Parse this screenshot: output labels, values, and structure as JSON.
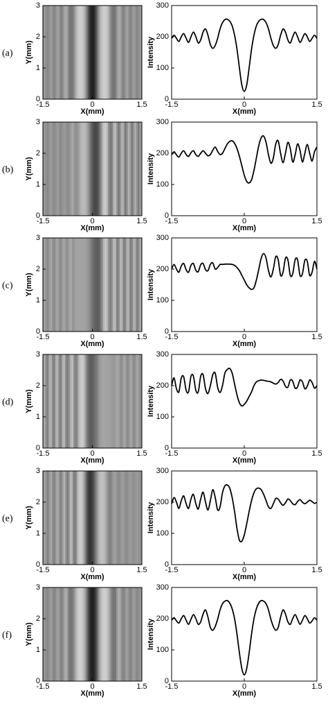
{
  "chart_data": [
    {
      "type": "line",
      "panel_label": "(a)",
      "x_label": "X(mm)",
      "y_label": "Intensity",
      "color": "#000000",
      "xlim": [
        -1.5,
        1.5
      ],
      "ylim": [
        0,
        300
      ],
      "xticks": [
        -1.5,
        0,
        1.5
      ],
      "yticks": [
        0,
        100,
        200,
        300
      ],
      "image": {
        "x_label": "X(mm)",
        "y_label": "Y(mm)",
        "xlim": [
          -1.5,
          1.5
        ],
        "ylim": [
          0,
          3
        ],
        "xticks": [
          -1.5,
          0,
          1.5
        ],
        "yticks": [
          0,
          1,
          2,
          3
        ]
      },
      "x": [
        -1.5,
        -1.45,
        -1.4,
        -1.35,
        -1.3,
        -1.25,
        -1.2,
        -1.15,
        -1.1,
        -1.05,
        -1.0,
        -0.95,
        -0.9,
        -0.85,
        -0.8,
        -0.75,
        -0.7,
        -0.65,
        -0.6,
        -0.55,
        -0.5,
        -0.45,
        -0.4,
        -0.35,
        -0.3,
        -0.25,
        -0.2,
        -0.15,
        -0.1,
        -0.05,
        0,
        0.05,
        0.1,
        0.15,
        0.2,
        0.25,
        0.3,
        0.35,
        0.4,
        0.45,
        0.5,
        0.55,
        0.6,
        0.65,
        0.7,
        0.75,
        0.8,
        0.85,
        0.9,
        0.95,
        1.0,
        1.05,
        1.1,
        1.15,
        1.2,
        1.25,
        1.3,
        1.35,
        1.4,
        1.45,
        1.5
      ],
      "values": [
        195,
        205,
        195,
        185,
        200,
        210,
        195,
        182,
        200,
        215,
        200,
        180,
        190,
        215,
        225,
        205,
        175,
        163,
        172,
        195,
        225,
        245,
        255,
        256,
        250,
        235,
        205,
        160,
        100,
        45,
        25,
        45,
        100,
        160,
        205,
        235,
        250,
        256,
        255,
        245,
        225,
        195,
        172,
        163,
        175,
        205,
        225,
        215,
        190,
        180,
        200,
        215,
        200,
        182,
        195,
        210,
        200,
        185,
        195,
        205,
        195
      ]
    },
    {
      "type": "line",
      "panel_label": "(b)",
      "x_label": "X(mm)",
      "y_label": "Intensity",
      "color": "#000000",
      "xlim": [
        -1.5,
        1.5
      ],
      "ylim": [
        0,
        300
      ],
      "xticks": [
        -1.5,
        0,
        1.5
      ],
      "yticks": [
        0,
        100,
        200,
        300
      ],
      "image": {
        "x_label": "X(mm)",
        "y_label": "Y(mm)",
        "xlim": [
          -1.5,
          1.5
        ],
        "ylim": [
          0,
          3
        ],
        "xticks": [
          -1.5,
          0,
          1.5
        ],
        "yticks": [
          0,
          1,
          2,
          3
        ]
      },
      "x": [
        -1.5,
        -1.45,
        -1.4,
        -1.35,
        -1.3,
        -1.25,
        -1.2,
        -1.15,
        -1.1,
        -1.05,
        -1.0,
        -0.95,
        -0.9,
        -0.85,
        -0.8,
        -0.75,
        -0.7,
        -0.65,
        -0.6,
        -0.55,
        -0.5,
        -0.45,
        -0.4,
        -0.35,
        -0.3,
        -0.25,
        -0.2,
        -0.15,
        -0.1,
        -0.05,
        0,
        0.05,
        0.1,
        0.15,
        0.2,
        0.25,
        0.3,
        0.35,
        0.4,
        0.45,
        0.5,
        0.55,
        0.6,
        0.65,
        0.7,
        0.75,
        0.8,
        0.85,
        0.9,
        0.95,
        1.0,
        1.05,
        1.1,
        1.15,
        1.2,
        1.25,
        1.3,
        1.35,
        1.4,
        1.45,
        1.5
      ],
      "values": [
        195,
        205,
        195,
        188,
        200,
        208,
        196,
        190,
        202,
        208,
        196,
        190,
        200,
        208,
        200,
        192,
        196,
        210,
        220,
        206,
        196,
        200,
        215,
        230,
        238,
        240,
        232,
        215,
        190,
        160,
        130,
        110,
        105,
        115,
        145,
        185,
        225,
        250,
        255,
        235,
        195,
        168,
        185,
        230,
        240,
        200,
        170,
        200,
        235,
        215,
        172,
        195,
        230,
        210,
        172,
        200,
        228,
        200,
        175,
        205,
        220
      ]
    },
    {
      "type": "line",
      "panel_label": "(c)",
      "x_label": "X(mm)",
      "y_label": "Intensity",
      "color": "#000000",
      "xlim": [
        -1.5,
        1.5
      ],
      "ylim": [
        0,
        300
      ],
      "xticks": [
        -1.5,
        0,
        1.5
      ],
      "yticks": [
        0,
        100,
        200,
        300
      ],
      "image": {
        "x_label": "X(mm)",
        "y_label": "Y(mm)",
        "xlim": [
          -1.5,
          1.5
        ],
        "ylim": [
          0,
          3
        ],
        "xticks": [
          -1.5,
          0,
          1.5
        ],
        "yticks": [
          0,
          1,
          2,
          3
        ]
      },
      "x": [
        -1.5,
        -1.45,
        -1.4,
        -1.35,
        -1.3,
        -1.25,
        -1.2,
        -1.15,
        -1.1,
        -1.05,
        -1.0,
        -0.95,
        -0.9,
        -0.85,
        -0.8,
        -0.75,
        -0.7,
        -0.65,
        -0.6,
        -0.55,
        -0.5,
        -0.45,
        -0.4,
        -0.35,
        -0.3,
        -0.25,
        -0.2,
        -0.15,
        -0.1,
        -0.05,
        0,
        0.05,
        0.1,
        0.15,
        0.2,
        0.25,
        0.3,
        0.35,
        0.4,
        0.45,
        0.5,
        0.55,
        0.6,
        0.65,
        0.7,
        0.75,
        0.8,
        0.85,
        0.9,
        0.95,
        1.0,
        1.05,
        1.1,
        1.15,
        1.2,
        1.25,
        1.3,
        1.35,
        1.4,
        1.45,
        1.5
      ],
      "values": [
        200,
        215,
        200,
        190,
        210,
        218,
        198,
        190,
        212,
        218,
        196,
        192,
        214,
        218,
        198,
        195,
        215,
        220,
        200,
        205,
        215,
        215,
        216,
        216,
        216,
        215,
        212,
        205,
        195,
        180,
        165,
        150,
        140,
        135,
        140,
        165,
        200,
        235,
        250,
        235,
        195,
        175,
        200,
        240,
        230,
        180,
        190,
        235,
        230,
        180,
        185,
        230,
        230,
        180,
        185,
        228,
        225,
        180,
        190,
        225,
        200
      ]
    },
    {
      "type": "line",
      "panel_label": "(d)",
      "x_label": "X(mm)",
      "y_label": "Intensity",
      "color": "#000000",
      "xlim": [
        -1.5,
        1.5
      ],
      "ylim": [
        0,
        300
      ],
      "xticks": [
        -1.5,
        0,
        1.5
      ],
      "yticks": [
        0,
        100,
        200,
        300
      ],
      "image": {
        "x_label": "X(mm)",
        "y_label": "Y(mm)",
        "xlim": [
          -1.5,
          1.5
        ],
        "ylim": [
          0,
          3
        ],
        "xticks": [
          -1.5,
          0,
          1.5
        ],
        "yticks": [
          0,
          1,
          2,
          3
        ]
      },
      "x": [
        -1.5,
        -1.45,
        -1.4,
        -1.35,
        -1.3,
        -1.25,
        -1.2,
        -1.15,
        -1.1,
        -1.05,
        -1.0,
        -0.95,
        -0.9,
        -0.85,
        -0.8,
        -0.75,
        -0.7,
        -0.65,
        -0.6,
        -0.55,
        -0.5,
        -0.45,
        -0.4,
        -0.35,
        -0.3,
        -0.25,
        -0.2,
        -0.15,
        -0.1,
        -0.05,
        0,
        0.05,
        0.1,
        0.15,
        0.2,
        0.25,
        0.3,
        0.35,
        0.4,
        0.45,
        0.5,
        0.55,
        0.6,
        0.65,
        0.7,
        0.75,
        0.8,
        0.85,
        0.9,
        0.95,
        1.0,
        1.05,
        1.1,
        1.15,
        1.2,
        1.25,
        1.3,
        1.35,
        1.4,
        1.45,
        1.5
      ],
      "values": [
        200,
        225,
        190,
        180,
        225,
        228,
        185,
        180,
        230,
        230,
        185,
        180,
        230,
        235,
        190,
        175,
        200,
        235,
        240,
        195,
        178,
        200,
        240,
        252,
        255,
        240,
        205,
        170,
        145,
        135,
        140,
        150,
        165,
        180,
        200,
        212,
        216,
        218,
        217,
        215,
        214,
        212,
        208,
        205,
        210,
        220,
        215,
        198,
        195,
        218,
        214,
        192,
        196,
        218,
        212,
        190,
        198,
        218,
        210,
        192,
        200
      ]
    },
    {
      "type": "line",
      "panel_label": "(e)",
      "x_label": "X(mm)",
      "y_label": "Intensity",
      "color": "#000000",
      "xlim": [
        -1.5,
        1.5
      ],
      "ylim": [
        0,
        300
      ],
      "xticks": [
        -1.5,
        0,
        1.5
      ],
      "yticks": [
        0,
        100,
        200,
        300
      ],
      "image": {
        "x_label": "X(mm)",
        "y_label": "Y(mm)",
        "xlim": [
          -1.5,
          1.5
        ],
        "ylim": [
          0,
          3
        ],
        "xticks": [
          -1.5,
          0,
          1.5
        ],
        "yticks": [
          0,
          1,
          2,
          3
        ]
      },
      "x": [
        -1.5,
        -1.45,
        -1.4,
        -1.35,
        -1.3,
        -1.25,
        -1.2,
        -1.15,
        -1.1,
        -1.05,
        -1.0,
        -0.95,
        -0.9,
        -0.85,
        -0.8,
        -0.75,
        -0.7,
        -0.65,
        -0.6,
        -0.55,
        -0.5,
        -0.45,
        -0.4,
        -0.35,
        -0.3,
        -0.25,
        -0.2,
        -0.15,
        -0.1,
        -0.05,
        0,
        0.05,
        0.1,
        0.15,
        0.2,
        0.25,
        0.3,
        0.35,
        0.4,
        0.45,
        0.5,
        0.55,
        0.6,
        0.65,
        0.7,
        0.75,
        0.8,
        0.85,
        0.9,
        0.95,
        1.0,
        1.05,
        1.1,
        1.15,
        1.2,
        1.25,
        1.3,
        1.35,
        1.4,
        1.45,
        1.5
      ],
      "values": [
        195,
        215,
        200,
        180,
        205,
        220,
        195,
        180,
        210,
        225,
        195,
        178,
        210,
        232,
        200,
        175,
        205,
        240,
        215,
        175,
        185,
        230,
        252,
        255,
        245,
        215,
        170,
        115,
        78,
        75,
        95,
        130,
        170,
        205,
        230,
        243,
        245,
        240,
        225,
        205,
        185,
        180,
        195,
        212,
        210,
        198,
        190,
        198,
        210,
        205,
        195,
        192,
        202,
        208,
        200,
        195,
        200,
        206,
        202,
        196,
        200
      ]
    },
    {
      "type": "line",
      "panel_label": "(f)",
      "x_label": "X(mm)",
      "y_label": "Intensity",
      "color": "#000000",
      "xlim": [
        -1.5,
        1.5
      ],
      "ylim": [
        0,
        300
      ],
      "xticks": [
        -1.5,
        0,
        1.5
      ],
      "yticks": [
        0,
        100,
        200,
        300
      ],
      "image": {
        "x_label": "X(mm)",
        "y_label": "Y(mm)",
        "xlim": [
          -1.5,
          1.5
        ],
        "ylim": [
          0,
          3
        ],
        "xticks": [
          -1.5,
          0,
          1.5
        ],
        "yticks": [
          0,
          1,
          2,
          3
        ]
      },
      "x": [
        -1.5,
        -1.45,
        -1.4,
        -1.35,
        -1.3,
        -1.25,
        -1.2,
        -1.15,
        -1.1,
        -1.05,
        -1.0,
        -0.95,
        -0.9,
        -0.85,
        -0.8,
        -0.75,
        -0.7,
        -0.65,
        -0.6,
        -0.55,
        -0.5,
        -0.45,
        -0.4,
        -0.35,
        -0.3,
        -0.25,
        -0.2,
        -0.15,
        -0.1,
        -0.05,
        0,
        0.05,
        0.1,
        0.15,
        0.2,
        0.25,
        0.3,
        0.35,
        0.4,
        0.45,
        0.5,
        0.55,
        0.6,
        0.65,
        0.7,
        0.75,
        0.8,
        0.85,
        0.9,
        0.95,
        1.0,
        1.05,
        1.1,
        1.15,
        1.2,
        1.25,
        1.3,
        1.35,
        1.4,
        1.45,
        1.5
      ],
      "values": [
        195,
        203,
        193,
        186,
        200,
        210,
        195,
        182,
        198,
        213,
        200,
        182,
        190,
        215,
        228,
        205,
        172,
        163,
        175,
        198,
        228,
        248,
        256,
        258,
        250,
        232,
        200,
        150,
        90,
        40,
        20,
        40,
        90,
        150,
        200,
        232,
        250,
        258,
        256,
        248,
        228,
        198,
        175,
        163,
        172,
        205,
        228,
        215,
        190,
        182,
        200,
        213,
        198,
        182,
        195,
        210,
        200,
        186,
        193,
        203,
        195
      ]
    }
  ]
}
